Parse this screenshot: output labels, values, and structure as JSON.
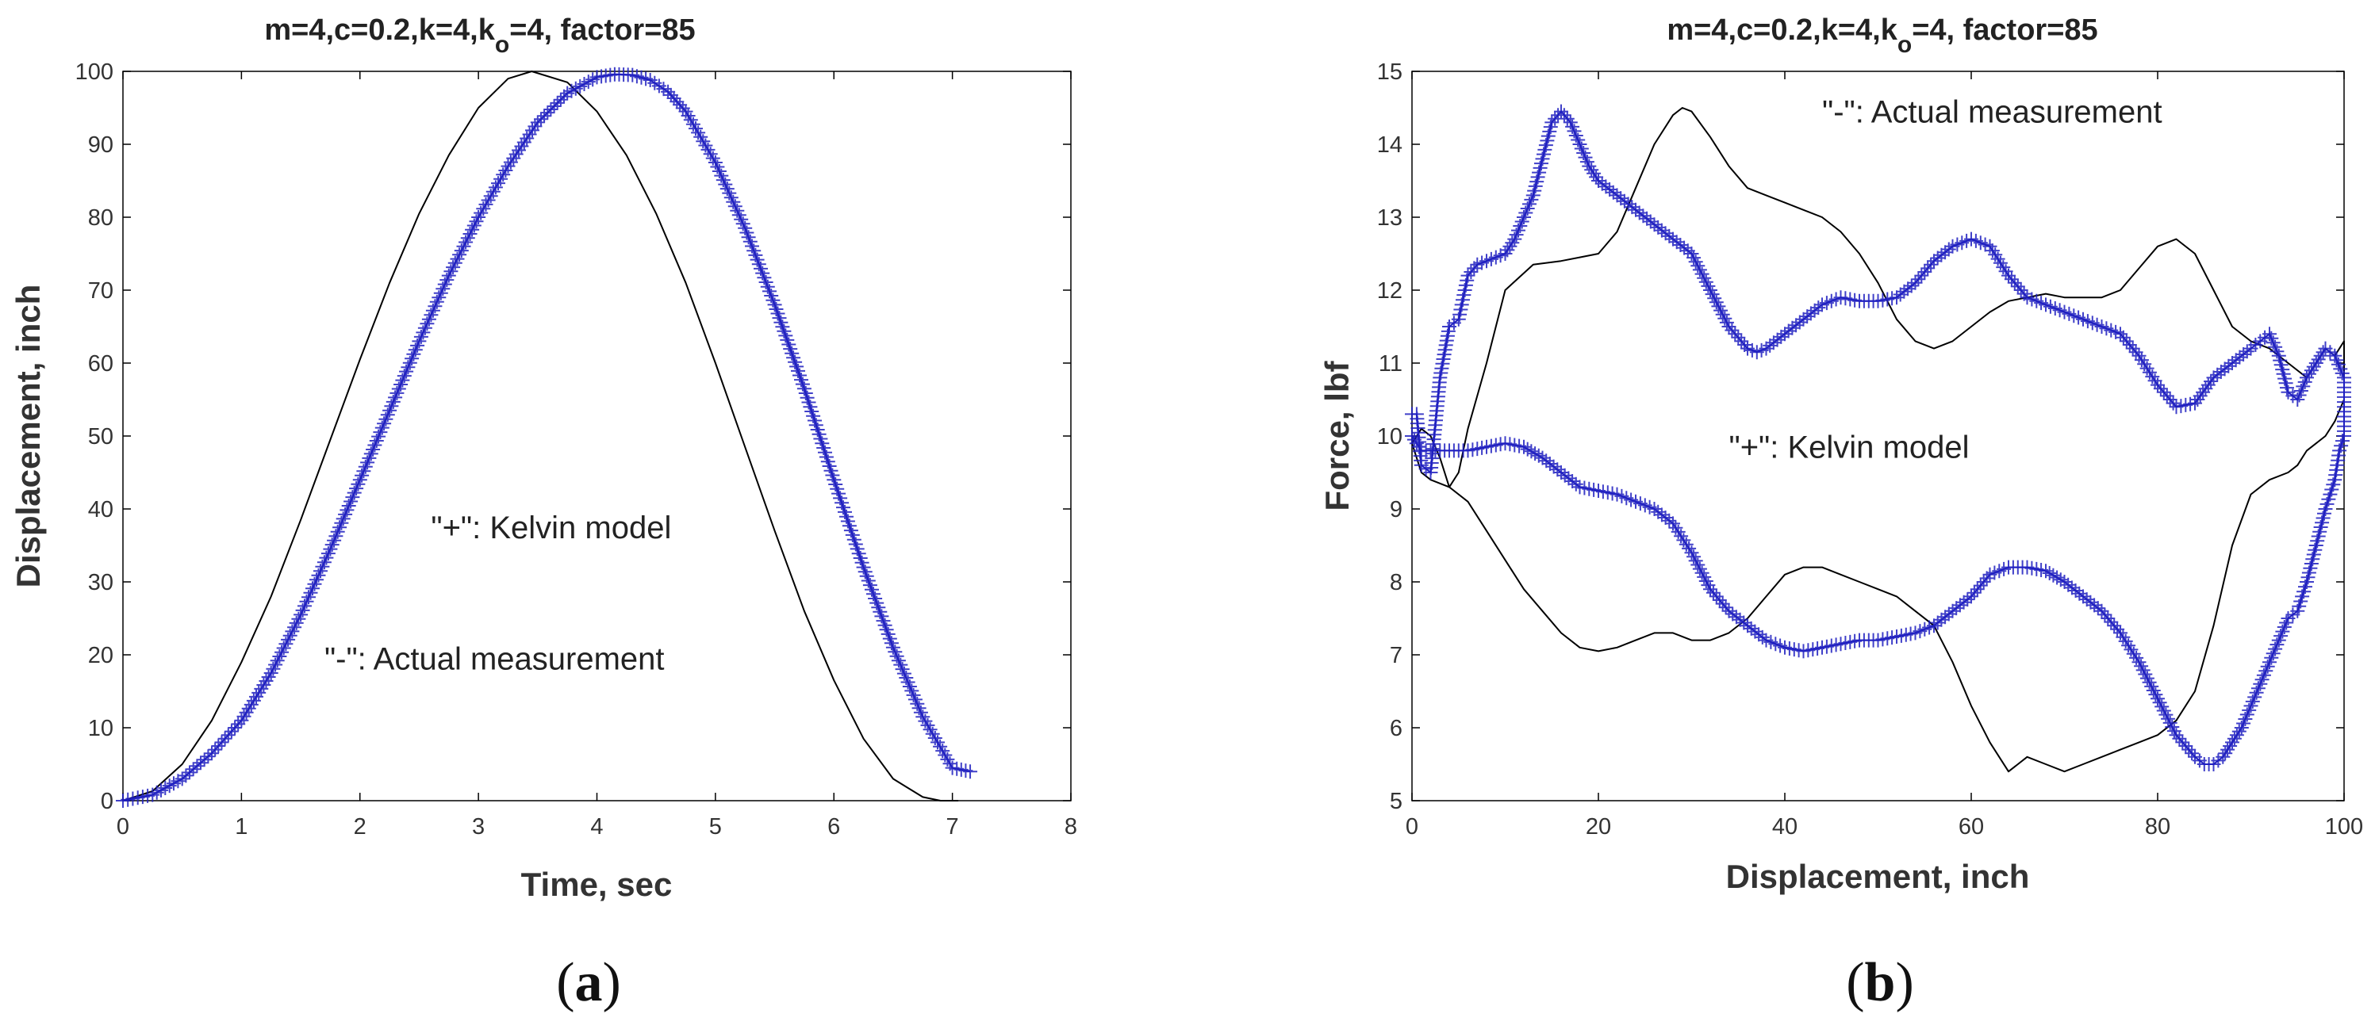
{
  "chart_data": [
    {
      "panel": "(a)",
      "panel_prefix": "(",
      "panel_letter": "a",
      "panel_suffix": ")",
      "type": "line",
      "title": "m=4,c=0.2,k=4,k",
      "title_sub": "o",
      "title_rest": "=4, factor=85",
      "xlabel": "Time, sec",
      "ylabel": "Displacement, inch",
      "xlim": [
        0,
        8
      ],
      "ylim": [
        0,
        100
      ],
      "xticks": [
        0,
        1,
        2,
        3,
        4,
        5,
        6,
        7,
        8
      ],
      "yticks": [
        0,
        10,
        20,
        30,
        40,
        50,
        60,
        70,
        80,
        90,
        100
      ],
      "annotations": [
        {
          "text": "\"+\": Kelvin model",
          "x": 2.6,
          "y": 36
        },
        {
          "text": "\"-\": Actual measurement",
          "x": 1.7,
          "y": 18
        }
      ],
      "series": [
        {
          "name": "Actual measurement",
          "style": "line",
          "color": "#000000",
          "x": [
            0.0,
            0.25,
            0.5,
            0.75,
            1.0,
            1.25,
            1.5,
            1.75,
            2.0,
            2.25,
            2.5,
            2.75,
            3.0,
            3.25,
            3.45,
            3.75,
            4.0,
            4.25,
            4.5,
            4.75,
            5.0,
            5.25,
            5.5,
            5.75,
            6.0,
            6.25,
            6.5,
            6.75,
            6.9,
            7.05
          ],
          "y": [
            0.0,
            1.3,
            5.0,
            11.0,
            19.0,
            28.0,
            38.5,
            49.5,
            60.5,
            71.0,
            80.5,
            88.5,
            95.0,
            99.0,
            100.0,
            98.5,
            94.5,
            88.5,
            80.5,
            71.0,
            60.0,
            48.5,
            37.0,
            26.0,
            16.5,
            8.5,
            3.0,
            0.5,
            0.0,
            0.0
          ]
        },
        {
          "name": "Kelvin model",
          "style": "plus",
          "color": "#1f1fc0",
          "x": [
            0.0,
            0.25,
            0.5,
            0.75,
            1.0,
            1.25,
            1.5,
            1.75,
            2.0,
            2.25,
            2.5,
            2.75,
            3.0,
            3.25,
            3.5,
            3.75,
            4.0,
            4.15,
            4.3,
            4.45,
            4.6,
            4.75,
            5.0,
            5.25,
            5.5,
            5.75,
            6.0,
            6.25,
            6.5,
            6.75,
            7.0,
            7.15
          ],
          "y": [
            0.0,
            0.8,
            3.0,
            6.5,
            11.0,
            17.5,
            25.5,
            34.5,
            44.0,
            53.5,
            63.0,
            72.0,
            80.0,
            87.0,
            93.0,
            97.0,
            99.2,
            99.6,
            99.5,
            98.8,
            97.2,
            94.5,
            87.5,
            78.5,
            68.0,
            56.5,
            44.0,
            32.0,
            21.0,
            11.5,
            4.5,
            4.0
          ]
        }
      ]
    },
    {
      "panel": "(b)",
      "panel_prefix": "(",
      "panel_letter": "b",
      "panel_suffix": ")",
      "type": "line",
      "title": "m=4,c=0.2,k=4,k",
      "title_sub": "o",
      "title_rest": "=4, factor=85",
      "xlabel": "Displacement, inch",
      "ylabel": "Force, lbf",
      "xlim": [
        0,
        100
      ],
      "ylim": [
        5,
        15
      ],
      "xticks": [
        0,
        20,
        40,
        60,
        80,
        100
      ],
      "yticks": [
        5,
        6,
        7,
        8,
        9,
        10,
        11,
        12,
        13,
        14,
        15
      ],
      "annotations": [
        {
          "text": "\"-\": Actual measurement",
          "x": 44,
          "y": 14.3
        },
        {
          "text": "\"+\": Kelvin model",
          "x": 34,
          "y": 9.7
        }
      ],
      "series": [
        {
          "name": "Actual measurement",
          "style": "line",
          "color": "#000000",
          "x": [
            0,
            1,
            2,
            3,
            4,
            5,
            6,
            8,
            10,
            13,
            16,
            18,
            20,
            22,
            24,
            26,
            28,
            29,
            30,
            32,
            34,
            36,
            38,
            40,
            42,
            44,
            46,
            48,
            50,
            52,
            54,
            56,
            58,
            60,
            62,
            64,
            66,
            68,
            70,
            72,
            74,
            76,
            78,
            80,
            82,
            84,
            86,
            88,
            90,
            92,
            94,
            96,
            97,
            98,
            99,
            100,
            100,
            99,
            98,
            97,
            96,
            95,
            94,
            92,
            90,
            88,
            86,
            84,
            82,
            80,
            78,
            76,
            74,
            72,
            70,
            68,
            66,
            65,
            64,
            62,
            60,
            58,
            56,
            54,
            52,
            50,
            48,
            46,
            44,
            42,
            40,
            38,
            36,
            34,
            32,
            30,
            28,
            26,
            24,
            22,
            20,
            18,
            16,
            14,
            12,
            10,
            8,
            6,
            4,
            2,
            1,
            0
          ],
          "y": [
            9.9,
            10.1,
            10.0,
            9.7,
            9.3,
            9.5,
            10.1,
            11.0,
            12.0,
            12.35,
            12.4,
            12.45,
            12.5,
            12.8,
            13.4,
            14.0,
            14.4,
            14.5,
            14.45,
            14.1,
            13.7,
            13.4,
            13.3,
            13.2,
            13.1,
            13.0,
            12.8,
            12.5,
            12.1,
            11.6,
            11.3,
            11.2,
            11.3,
            11.5,
            11.7,
            11.85,
            11.9,
            11.95,
            11.9,
            11.9,
            11.9,
            12.0,
            12.3,
            12.6,
            12.7,
            12.5,
            12.0,
            11.5,
            11.3,
            11.2,
            11.0,
            10.8,
            11.0,
            11.2,
            11.1,
            11.3,
            10.5,
            10.2,
            10.0,
            9.9,
            9.8,
            9.6,
            9.5,
            9.4,
            9.2,
            8.5,
            7.4,
            6.5,
            6.1,
            5.9,
            5.8,
            5.7,
            5.6,
            5.5,
            5.4,
            5.5,
            5.6,
            5.5,
            5.4,
            5.8,
            6.3,
            6.9,
            7.4,
            7.6,
            7.8,
            7.9,
            8.0,
            8.1,
            8.2,
            8.2,
            8.1,
            7.8,
            7.5,
            7.3,
            7.2,
            7.2,
            7.3,
            7.3,
            7.2,
            7.1,
            7.05,
            7.1,
            7.3,
            7.6,
            7.9,
            8.3,
            8.7,
            9.1,
            9.3,
            9.4,
            9.5,
            9.9
          ]
        },
        {
          "name": "Kelvin model",
          "style": "plus",
          "color": "#1f1fc0",
          "x": [
            0,
            0.5,
            1,
            2,
            3,
            4,
            5,
            6,
            7,
            8,
            9,
            10,
            11,
            12,
            13,
            14,
            15,
            16,
            17,
            18,
            19,
            20,
            22,
            24,
            26,
            28,
            30,
            32,
            34,
            36,
            37,
            38,
            40,
            42,
            44,
            46,
            48,
            50,
            52,
            54,
            56,
            58,
            60,
            62,
            64,
            66,
            68,
            70,
            72,
            74,
            76,
            78,
            80,
            82,
            84,
            86,
            88,
            90,
            91,
            92,
            93,
            94,
            95,
            96,
            97,
            98,
            99,
            100,
            100,
            99.5,
            99,
            98,
            97,
            96,
            95,
            94,
            93,
            92,
            91,
            90,
            89,
            88,
            87,
            86,
            85,
            84,
            82,
            80,
            78,
            76,
            74,
            72,
            70,
            68,
            66,
            64,
            62,
            60,
            58,
            56,
            54,
            52,
            50,
            48,
            46,
            44,
            42,
            40,
            38,
            36,
            34,
            32,
            30,
            28,
            26,
            24,
            22,
            20,
            18,
            16,
            14,
            12,
            10,
            8,
            6,
            4,
            3,
            2,
            1,
            0
          ],
          "y": [
            10.3,
            10.3,
            9.6,
            9.5,
            10.8,
            11.5,
            11.6,
            12.2,
            12.35,
            12.4,
            12.45,
            12.5,
            12.7,
            13.0,
            13.3,
            13.8,
            14.3,
            14.45,
            14.3,
            14.0,
            13.7,
            13.5,
            13.3,
            13.1,
            12.9,
            12.7,
            12.5,
            12.0,
            11.5,
            11.2,
            11.15,
            11.2,
            11.4,
            11.6,
            11.8,
            11.9,
            11.85,
            11.85,
            11.9,
            12.1,
            12.4,
            12.6,
            12.7,
            12.6,
            12.2,
            11.9,
            11.8,
            11.7,
            11.6,
            11.5,
            11.4,
            11.1,
            10.7,
            10.4,
            10.45,
            10.8,
            11.0,
            11.2,
            11.3,
            11.4,
            11.1,
            10.6,
            10.5,
            10.8,
            11.0,
            11.2,
            11.1,
            10.8,
            10.0,
            9.8,
            9.4,
            9.0,
            8.5,
            8.0,
            7.6,
            7.5,
            7.2,
            6.9,
            6.6,
            6.3,
            6.0,
            5.8,
            5.6,
            5.5,
            5.5,
            5.6,
            5.9,
            6.4,
            6.9,
            7.3,
            7.6,
            7.8,
            8.0,
            8.15,
            8.2,
            8.2,
            8.1,
            7.8,
            7.6,
            7.4,
            7.3,
            7.25,
            7.2,
            7.2,
            7.15,
            7.1,
            7.05,
            7.1,
            7.2,
            7.4,
            7.6,
            7.9,
            8.4,
            8.8,
            9.0,
            9.1,
            9.2,
            9.25,
            9.3,
            9.5,
            9.7,
            9.85,
            9.9,
            9.85,
            9.8,
            9.8,
            9.8,
            9.8,
            9.8,
            10.0
          ]
        }
      ]
    }
  ]
}
